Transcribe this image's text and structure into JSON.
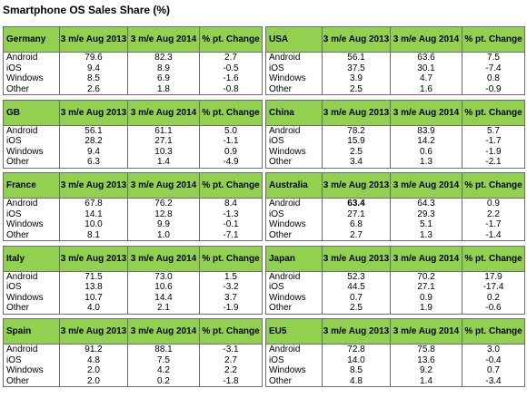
{
  "title": "Smartphone OS Sales Share (%)",
  "columns": [
    "3 m/e Aug 2013",
    "3 m/e Aug 2014",
    "% pt. Change"
  ],
  "chart_data": {
    "type": "table",
    "title": "Smartphone OS Sales Share (%)",
    "columns": [
      "3 m/e Aug 2013",
      "3 m/e Aug 2014",
      "% pt. Change"
    ],
    "regions": [
      {
        "name": "Germany",
        "rows": [
          {
            "os": "Android",
            "v2013": "79.6",
            "v2014": "82.3",
            "change": "2.7"
          },
          {
            "os": "iOS",
            "v2013": "9.4",
            "v2014": "8.9",
            "change": "-0.5"
          },
          {
            "os": "Windows",
            "v2013": "8.5",
            "v2014": "6.9",
            "change": "-1.6"
          },
          {
            "os": "Other",
            "v2013": "2.6",
            "v2014": "1.8",
            "change": "-0.8"
          }
        ]
      },
      {
        "name": "GB",
        "rows": [
          {
            "os": "Android",
            "v2013": "56.1",
            "v2014": "61.1",
            "change": "5.0"
          },
          {
            "os": "iOS",
            "v2013": "28.2",
            "v2014": "27.1",
            "change": "-1.1"
          },
          {
            "os": "Windows",
            "v2013": "9.4",
            "v2014": "10.3",
            "change": "0.9"
          },
          {
            "os": "Other",
            "v2013": "6.3",
            "v2014": "1.4",
            "change": "-4.9"
          }
        ]
      },
      {
        "name": "France",
        "rows": [
          {
            "os": "Android",
            "v2013": "67.8",
            "v2014": "76.2",
            "change": "8.4"
          },
          {
            "os": "iOS",
            "v2013": "14.1",
            "v2014": "12.8",
            "change": "-1.3"
          },
          {
            "os": "Windows",
            "v2013": "10.0",
            "v2014": "9.9",
            "change": "-0.1"
          },
          {
            "os": "Other",
            "v2013": "8.1",
            "v2014": "1.0",
            "change": "-7.1"
          }
        ]
      },
      {
        "name": "Italy",
        "rows": [
          {
            "os": "Android",
            "v2013": "71.5",
            "v2014": "73.0",
            "change": "1.5"
          },
          {
            "os": "iOS",
            "v2013": "13.8",
            "v2014": "10.6",
            "change": "-3.2"
          },
          {
            "os": "Windows",
            "v2013": "10.7",
            "v2014": "14.4",
            "change": "3.7"
          },
          {
            "os": "Other",
            "v2013": "4.0",
            "v2014": "2.1",
            "change": "-1.9"
          }
        ]
      },
      {
        "name": "Spain",
        "rows": [
          {
            "os": "Android",
            "v2013": "91.2",
            "v2014": "88.1",
            "change": "-3.1"
          },
          {
            "os": "iOS",
            "v2013": "4.8",
            "v2014": "7.5",
            "change": "2.7"
          },
          {
            "os": "Windows",
            "v2013": "2.0",
            "v2014": "4.2",
            "change": "2.2"
          },
          {
            "os": "Other",
            "v2013": "2.0",
            "v2014": "0.2",
            "change": "-1.8"
          }
        ]
      },
      {
        "name": "USA",
        "rows": [
          {
            "os": "Android",
            "v2013": "56.1",
            "v2014": "63.6",
            "change": "7.5"
          },
          {
            "os": "iOS",
            "v2013": "37.5",
            "v2014": "30.1",
            "change": "-7.4"
          },
          {
            "os": "Windows",
            "v2013": "3.9",
            "v2014": "4.7",
            "change": "0.8"
          },
          {
            "os": "Other",
            "v2013": "2.5",
            "v2014": "1.6",
            "change": "-0.9"
          }
        ]
      },
      {
        "name": "China",
        "rows": [
          {
            "os": "Android",
            "v2013": "78.2",
            "v2014": "83.9",
            "change": "5.7"
          },
          {
            "os": "iOS",
            "v2013": "15.9",
            "v2014": "14.2",
            "change": "-1.7"
          },
          {
            "os": "Windows",
            "v2013": "2.5",
            "v2014": "0.6",
            "change": "-1.9"
          },
          {
            "os": "Other",
            "v2013": "3.4",
            "v2014": "1.3",
            "change": "-2.1"
          }
        ]
      },
      {
        "name": "Australia",
        "rows": [
          {
            "os": "Android",
            "v2013": "63.4",
            "v2014": "64.3",
            "change": "0.9",
            "bold2013": true
          },
          {
            "os": "iOS",
            "v2013": "27.1",
            "v2014": "29.3",
            "change": "2.2"
          },
          {
            "os": "Windows",
            "v2013": "6.8",
            "v2014": "5.1",
            "change": "-1.7"
          },
          {
            "os": "Other",
            "v2013": "2.7",
            "v2014": "1.3",
            "change": "-1.4"
          }
        ]
      },
      {
        "name": "Japan",
        "rows": [
          {
            "os": "Android",
            "v2013": "52.3",
            "v2014": "70.2",
            "change": "17.9"
          },
          {
            "os": "iOS",
            "v2013": "44.5",
            "v2014": "27.1",
            "change": "-17.4"
          },
          {
            "os": "Windows",
            "v2013": "0.7",
            "v2014": "0.9",
            "change": "0.2"
          },
          {
            "os": "Other",
            "v2013": "2.5",
            "v2014": "1.9",
            "change": "-0.6"
          }
        ]
      },
      {
        "name": "EU5",
        "rows": [
          {
            "os": "Android",
            "v2013": "72.8",
            "v2014": "75.8",
            "change": "3.0"
          },
          {
            "os": "iOS",
            "v2013": "14.0",
            "v2014": "13.6",
            "change": "-0.4"
          },
          {
            "os": "Windows",
            "v2013": "8.5",
            "v2014": "9.2",
            "change": "0.7"
          },
          {
            "os": "Other",
            "v2013": "4.8",
            "v2014": "1.4",
            "change": "-3.4"
          }
        ]
      }
    ]
  },
  "colors": {
    "header_bg": "#92d050",
    "border": "#6e6e6e"
  }
}
